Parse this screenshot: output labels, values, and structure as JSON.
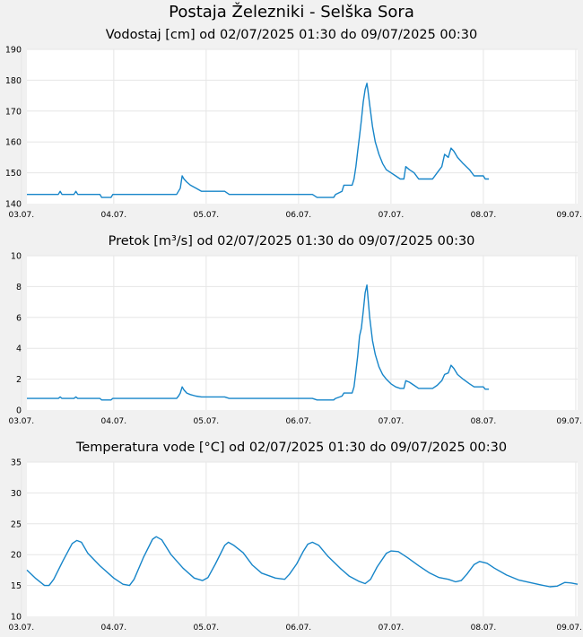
{
  "page": {
    "title": "Postaja Železniki - Selška Sora"
  },
  "style": {
    "background": "#f1f1f1",
    "plot_background": "#ffffff",
    "grid": "#e6e6e6",
    "line": "#1685c9"
  },
  "chart_data": [
    {
      "type": "line",
      "title": "Vodostaj [cm] od 02/07/2025 01:30 do 09/07/2025 00:30",
      "xlabel": "",
      "ylabel": "",
      "x_unit": "days from 02/07/2025 00:00",
      "xlim": [
        1.06,
        7.02
      ],
      "ylim": [
        140,
        190
      ],
      "yticks": [
        140,
        150,
        160,
        170,
        180,
        190
      ],
      "xticks": [
        1,
        2,
        3,
        4,
        5,
        6,
        7
      ],
      "xtick_labels": [
        "03.07.",
        "04.07.",
        "05.07.",
        "06.07.",
        "07.07.",
        "08.07.",
        "09.07."
      ],
      "grid": true,
      "series": [
        {
          "values": [
            [
              1.06,
              143
            ],
            [
              1.4,
              143
            ],
            [
              1.42,
              144
            ],
            [
              1.44,
              143
            ],
            [
              1.57,
              143
            ],
            [
              1.59,
              144
            ],
            [
              1.61,
              143
            ],
            [
              1.85,
              143
            ],
            [
              1.87,
              142
            ],
            [
              1.97,
              142
            ],
            [
              1.99,
              143
            ],
            [
              2.62,
              143
            ],
            [
              2.68,
              143
            ],
            [
              2.7,
              144
            ],
            [
              2.72,
              145
            ],
            [
              2.74,
              149
            ],
            [
              2.76,
              148
            ],
            [
              2.79,
              147
            ],
            [
              2.83,
              146
            ],
            [
              2.89,
              145
            ],
            [
              2.95,
              144
            ],
            [
              3.2,
              144
            ],
            [
              3.25,
              143
            ],
            [
              3.55,
              143
            ],
            [
              3.9,
              143
            ],
            [
              4.15,
              143
            ],
            [
              4.2,
              142
            ],
            [
              4.38,
              142
            ],
            [
              4.4,
              143
            ],
            [
              4.47,
              144
            ],
            [
              4.49,
              146
            ],
            [
              4.58,
              146
            ],
            [
              4.6,
              148
            ],
            [
              4.62,
              152
            ],
            [
              4.64,
              157
            ],
            [
              4.66,
              162
            ],
            [
              4.68,
              167
            ],
            [
              4.7,
              173
            ],
            [
              4.72,
              177
            ],
            [
              4.74,
              179
            ],
            [
              4.75,
              177
            ],
            [
              4.77,
              172
            ],
            [
              4.8,
              165
            ],
            [
              4.83,
              160
            ],
            [
              4.87,
              156
            ],
            [
              4.91,
              153
            ],
            [
              4.95,
              151
            ],
            [
              5.0,
              150
            ],
            [
              5.05,
              149
            ],
            [
              5.1,
              148
            ],
            [
              5.14,
              148
            ],
            [
              5.16,
              152
            ],
            [
              5.2,
              151
            ],
            [
              5.25,
              150
            ],
            [
              5.3,
              148
            ],
            [
              5.45,
              148
            ],
            [
              5.5,
              150
            ],
            [
              5.55,
              152
            ],
            [
              5.58,
              156
            ],
            [
              5.62,
              155
            ],
            [
              5.65,
              158
            ],
            [
              5.68,
              157
            ],
            [
              5.72,
              155
            ],
            [
              5.78,
              153
            ],
            [
              5.85,
              151
            ],
            [
              5.9,
              149
            ],
            [
              6.0,
              149
            ],
            [
              6.02,
              148
            ],
            [
              6.06,
              148
            ]
          ]
        }
      ]
    },
    {
      "type": "line",
      "title": "Pretok [m³/s] od 02/07/2025 01:30 do 09/07/2025 00:30",
      "xlabel": "",
      "ylabel": "",
      "x_unit": "days from 02/07/2025 00:00",
      "xlim": [
        1.06,
        7.02
      ],
      "ylim": [
        0,
        10
      ],
      "yticks": [
        0,
        2,
        4,
        6,
        8,
        10
      ],
      "xticks": [
        1,
        2,
        3,
        4,
        5,
        6,
        7
      ],
      "xtick_labels": [
        "03.07.",
        "04.07.",
        "05.07.",
        "06.07.",
        "07.07.",
        "08.07.",
        "09.07."
      ],
      "grid": true,
      "series": [
        {
          "values": [
            [
              1.06,
              0.75
            ],
            [
              1.4,
              0.75
            ],
            [
              1.42,
              0.85
            ],
            [
              1.44,
              0.75
            ],
            [
              1.57,
              0.75
            ],
            [
              1.59,
              0.85
            ],
            [
              1.61,
              0.75
            ],
            [
              1.85,
              0.75
            ],
            [
              1.87,
              0.65
            ],
            [
              1.97,
              0.65
            ],
            [
              1.99,
              0.75
            ],
            [
              2.62,
              0.75
            ],
            [
              2.68,
              0.75
            ],
            [
              2.7,
              0.9
            ],
            [
              2.72,
              1.1
            ],
            [
              2.74,
              1.5
            ],
            [
              2.76,
              1.3
            ],
            [
              2.79,
              1.1
            ],
            [
              2.83,
              1.0
            ],
            [
              2.89,
              0.9
            ],
            [
              2.95,
              0.85
            ],
            [
              3.2,
              0.85
            ],
            [
              3.25,
              0.75
            ],
            [
              3.55,
              0.75
            ],
            [
              3.9,
              0.75
            ],
            [
              4.15,
              0.75
            ],
            [
              4.2,
              0.65
            ],
            [
              4.38,
              0.65
            ],
            [
              4.4,
              0.75
            ],
            [
              4.47,
              0.9
            ],
            [
              4.49,
              1.1
            ],
            [
              4.58,
              1.1
            ],
            [
              4.6,
              1.5
            ],
            [
              4.62,
              2.5
            ],
            [
              4.64,
              3.5
            ],
            [
              4.66,
              4.8
            ],
            [
              4.68,
              5.3
            ],
            [
              4.7,
              6.4
            ],
            [
              4.72,
              7.6
            ],
            [
              4.74,
              8.1
            ],
            [
              4.75,
              7.4
            ],
            [
              4.77,
              6.0
            ],
            [
              4.8,
              4.5
            ],
            [
              4.83,
              3.6
            ],
            [
              4.87,
              2.8
            ],
            [
              4.91,
              2.3
            ],
            [
              4.95,
              2.0
            ],
            [
              5.0,
              1.7
            ],
            [
              5.05,
              1.5
            ],
            [
              5.1,
              1.4
            ],
            [
              5.14,
              1.4
            ],
            [
              5.16,
              1.9
            ],
            [
              5.2,
              1.8
            ],
            [
              5.25,
              1.6
            ],
            [
              5.3,
              1.4
            ],
            [
              5.45,
              1.4
            ],
            [
              5.5,
              1.6
            ],
            [
              5.55,
              1.9
            ],
            [
              5.58,
              2.3
            ],
            [
              5.62,
              2.4
            ],
            [
              5.65,
              2.9
            ],
            [
              5.68,
              2.7
            ],
            [
              5.72,
              2.3
            ],
            [
              5.78,
              2.0
            ],
            [
              5.85,
              1.7
            ],
            [
              5.9,
              1.5
            ],
            [
              6.0,
              1.5
            ],
            [
              6.02,
              1.35
            ],
            [
              6.06,
              1.35
            ]
          ]
        }
      ]
    },
    {
      "type": "line",
      "title": "Temperatura vode [°C] od 02/07/2025 01:30 do 09/07/2025 00:30",
      "xlabel": "",
      "ylabel": "",
      "x_unit": "days from 02/07/2025 00:00",
      "xlim": [
        1.06,
        7.02
      ],
      "ylim": [
        10,
        35
      ],
      "yticks": [
        10,
        15,
        20,
        25,
        30,
        35
      ],
      "xticks": [
        1,
        2,
        3,
        4,
        5,
        6,
        7
      ],
      "xtick_labels": [
        "03.07.",
        "04.07.",
        "05.07.",
        "06.07.",
        "07.07.",
        "08.07.",
        "09.07."
      ],
      "grid": true,
      "series": [
        {
          "values": [
            [
              1.06,
              17.5
            ],
            [
              1.15,
              16.2
            ],
            [
              1.25,
              15.0
            ],
            [
              1.3,
              15.0
            ],
            [
              1.35,
              16.0
            ],
            [
              1.45,
              19.0
            ],
            [
              1.55,
              21.8
            ],
            [
              1.6,
              22.3
            ],
            [
              1.65,
              22.0
            ],
            [
              1.72,
              20.2
            ],
            [
              1.85,
              18.2
            ],
            [
              2.0,
              16.2
            ],
            [
              2.1,
              15.2
            ],
            [
              2.17,
              15.0
            ],
            [
              2.22,
              16.0
            ],
            [
              2.32,
              19.5
            ],
            [
              2.42,
              22.5
            ],
            [
              2.46,
              22.9
            ],
            [
              2.52,
              22.4
            ],
            [
              2.62,
              20.0
            ],
            [
              2.75,
              17.8
            ],
            [
              2.87,
              16.2
            ],
            [
              2.96,
              15.8
            ],
            [
              3.02,
              16.3
            ],
            [
              3.1,
              18.5
            ],
            [
              3.2,
              21.5
            ],
            [
              3.24,
              22.0
            ],
            [
              3.3,
              21.5
            ],
            [
              3.4,
              20.3
            ],
            [
              3.5,
              18.3
            ],
            [
              3.6,
              17.0
            ],
            [
              3.75,
              16.2
            ],
            [
              3.85,
              16.0
            ],
            [
              3.9,
              16.8
            ],
            [
              3.98,
              18.5
            ],
            [
              4.05,
              20.5
            ],
            [
              4.1,
              21.7
            ],
            [
              4.15,
              22.0
            ],
            [
              4.22,
              21.5
            ],
            [
              4.32,
              19.7
            ],
            [
              4.45,
              17.8
            ],
            [
              4.55,
              16.5
            ],
            [
              4.65,
              15.7
            ],
            [
              4.72,
              15.3
            ],
            [
              4.78,
              16.0
            ],
            [
              4.85,
              18.0
            ],
            [
              4.95,
              20.2
            ],
            [
              5.0,
              20.6
            ],
            [
              5.08,
              20.5
            ],
            [
              5.18,
              19.5
            ],
            [
              5.3,
              18.2
            ],
            [
              5.42,
              17.0
            ],
            [
              5.52,
              16.3
            ],
            [
              5.62,
              16.0
            ],
            [
              5.7,
              15.6
            ],
            [
              5.76,
              15.8
            ],
            [
              5.82,
              16.8
            ],
            [
              5.9,
              18.4
            ],
            [
              5.96,
              18.9
            ],
            [
              6.04,
              18.6
            ],
            [
              6.12,
              17.8
            ],
            [
              6.25,
              16.7
            ],
            [
              6.38,
              15.9
            ],
            [
              6.5,
              15.5
            ],
            [
              6.62,
              15.1
            ],
            [
              6.72,
              14.8
            ],
            [
              6.8,
              14.9
            ],
            [
              6.88,
              15.5
            ],
            [
              6.95,
              15.4
            ],
            [
              7.02,
              15.2
            ]
          ]
        }
      ]
    }
  ]
}
